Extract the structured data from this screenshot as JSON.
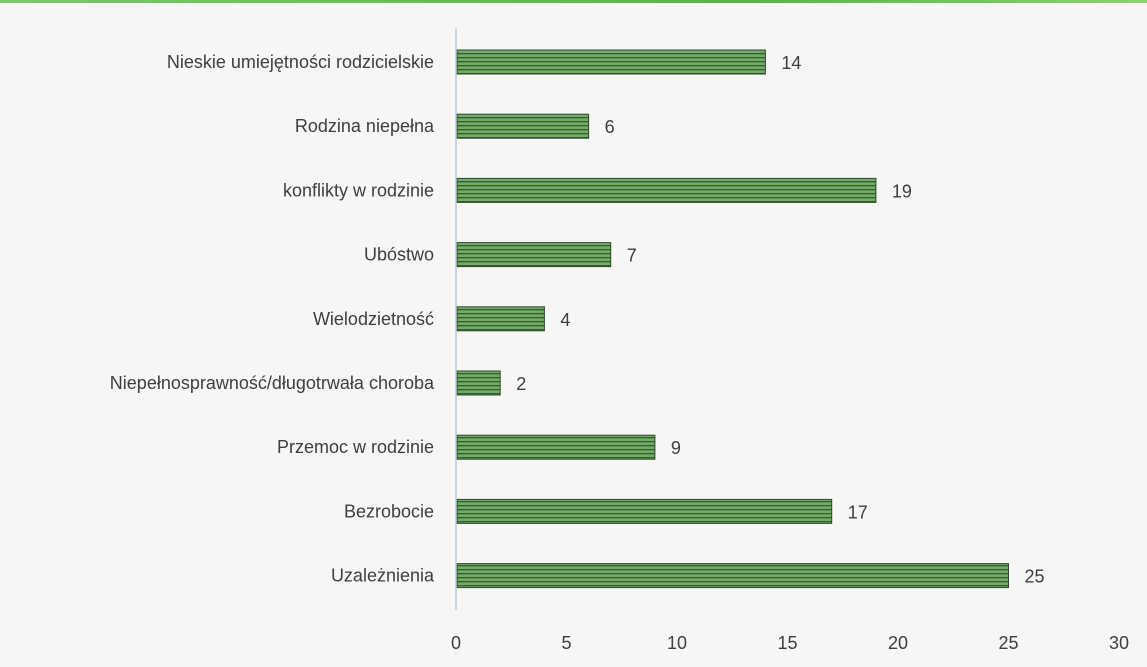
{
  "chart_data": {
    "type": "bar",
    "orientation": "horizontal",
    "categories": [
      "Nieskie umiejętności rodzicielskie",
      "Rodzina niepełna",
      "konflikty w rodzinie",
      "Ubóstwo",
      "Wielodzietność",
      "Niepełnosprawność/długotrwała choroba",
      "Przemoc w rodzinie",
      "Bezrobocie",
      "Uzależnienia"
    ],
    "values": [
      14,
      6,
      19,
      7,
      4,
      2,
      9,
      17,
      25
    ],
    "value_labels": [
      "14",
      "6",
      "19",
      "7",
      "4",
      "2",
      "9",
      "17",
      "25"
    ],
    "xlim": [
      0,
      30
    ],
    "x_ticks": [
      0,
      5,
      10,
      15,
      20,
      25,
      30
    ],
    "x_tick_labels": [
      "0",
      "5",
      "10",
      "15",
      "20",
      "25",
      "30"
    ],
    "title": "",
    "xlabel": "",
    "ylabel": "",
    "grid": false,
    "legend": "none",
    "bar_color": "#6fae63",
    "bar_stripe_color": "#2d4a2a",
    "axis_color": "#b9cbd8"
  }
}
